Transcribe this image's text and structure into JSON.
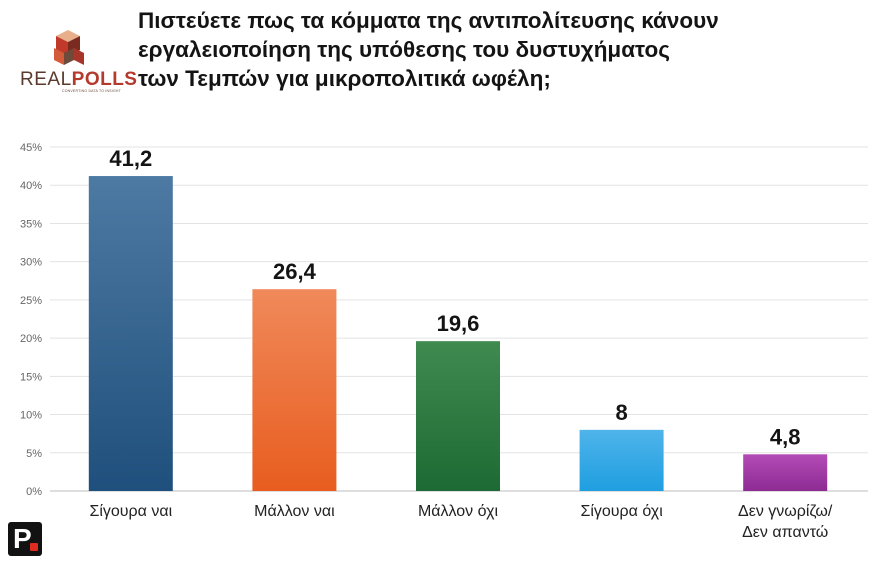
{
  "header": {
    "title_lines": [
      "Πιστεύετε πως τα κόμματα της αντιπολίτευσης κάνουν",
      "εργαλειοποίηση της υπόθεσης του δυστυχήματος",
      "των Τεμπών για μικροπολιτικά ωφέλη;"
    ]
  },
  "logo": {
    "text_light": "REAL",
    "text_bold": "POLLS",
    "tagline": "CONVERTING DATA TO INSIGHT",
    "colors": [
      "#c0392b",
      "#7b2a20",
      "#e8b08a",
      "#6d4a3a"
    ]
  },
  "brand": {
    "letter": "P",
    "dot_color": "#e02b20"
  },
  "chart_data": {
    "type": "bar",
    "categories": [
      "Σίγουρα ναι",
      "Μάλλον ναι",
      "Μάλλον όχι",
      "Σίγουρα όχι",
      "Δεν γνωρίζω/ Δεν απαντώ"
    ],
    "category_lines": [
      [
        "Σίγουρα ναι"
      ],
      [
        "Μάλλον ναι"
      ],
      [
        "Μάλλον όχι"
      ],
      [
        "Σίγουρα όχι"
      ],
      [
        "Δεν γνωρίζω/",
        "Δεν απαντώ"
      ]
    ],
    "values": [
      41.2,
      26.4,
      19.6,
      8,
      4.8
    ],
    "value_labels": [
      "41,2",
      "26,4",
      "19,6",
      "8",
      "4,8"
    ],
    "colors": [
      [
        "#4d7aa3",
        "#1f4f7c"
      ],
      [
        "#f0895a",
        "#e85d1f"
      ],
      [
        "#3f8a4f",
        "#1d6a34"
      ],
      [
        "#4fb4ea",
        "#1f9ee0"
      ],
      [
        "#b34bb6",
        "#8e2b93"
      ]
    ],
    "ylim": [
      0,
      45
    ],
    "yticks": [
      0,
      5,
      10,
      15,
      20,
      25,
      30,
      35,
      40,
      45
    ],
    "ytick_labels": [
      "0%",
      "5%",
      "10%",
      "15%",
      "20%",
      "25%",
      "30%",
      "35%",
      "40%",
      "45%"
    ],
    "grid": true,
    "title": "",
    "xlabel": "",
    "ylabel": ""
  }
}
